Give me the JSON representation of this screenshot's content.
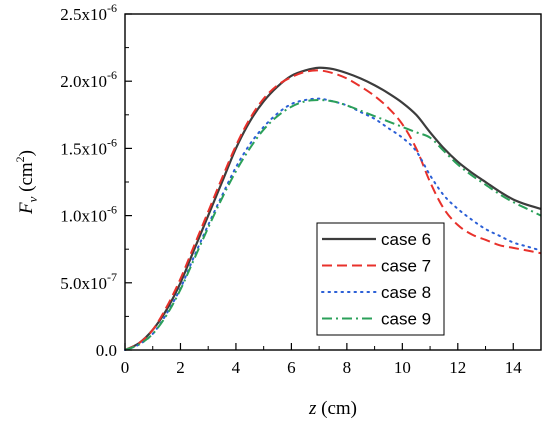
{
  "chart_data": {
    "type": "line",
    "xlabel_var": "z",
    "xlabel_unit": " (cm)",
    "ylabel_var": "F",
    "ylabel_sub": "v",
    "ylabel_unit_pre": " (cm",
    "ylabel_unit_sup": "2",
    "ylabel_unit_post": ")",
    "xlim": [
      0,
      15
    ],
    "ylim": [
      0,
      2.5e-06
    ],
    "x_ticks": [
      0,
      2,
      4,
      6,
      8,
      10,
      12,
      14
    ],
    "x_tick_labels": [
      "0",
      "2",
      "4",
      "6",
      "8",
      "10",
      "12",
      "14"
    ],
    "y_ticks": [
      {
        "value": 0,
        "mantissa": "0.0",
        "exp": ""
      },
      {
        "value": 5e-07,
        "mantissa": "5.0x10",
        "exp": "-7"
      },
      {
        "value": 1e-06,
        "mantissa": "1.0x10",
        "exp": "-6"
      },
      {
        "value": 1.5e-06,
        "mantissa": "1.5x10",
        "exp": "-6"
      },
      {
        "value": 2e-06,
        "mantissa": "2.0x10",
        "exp": "-6"
      },
      {
        "value": 2.5e-06,
        "mantissa": "2.5x10",
        "exp": "-6"
      }
    ],
    "grid": false,
    "legend_position": "lower-right",
    "series": [
      {
        "name": "case 6",
        "color": "#3c3c3c",
        "dash": "solid",
        "x": [
          0,
          0.5,
          1,
          1.5,
          2,
          2.5,
          3,
          3.5,
          4,
          4.5,
          5,
          5.5,
          6,
          6.5,
          7,
          7.5,
          8,
          8.5,
          9,
          9.5,
          10,
          10.5,
          11,
          11.5,
          12,
          12.5,
          13,
          13.5,
          14,
          14.5,
          15
        ],
        "values": [
          0,
          5e-08,
          1.5e-07,
          3e-07,
          5e-07,
          7.5e-07,
          1e-06,
          1.25e-06,
          1.5e-06,
          1.7e-06,
          1.85e-06,
          1.96e-06,
          2.04e-06,
          2.08e-06,
          2.1e-06,
          2.09e-06,
          2.06e-06,
          2.02e-06,
          1.97e-06,
          1.91e-06,
          1.84e-06,
          1.75e-06,
          1.62e-06,
          1.5e-06,
          1.4e-06,
          1.32e-06,
          1.25e-06,
          1.18e-06,
          1.12e-06,
          1.08e-06,
          1.05e-06
        ]
      },
      {
        "name": "case 7",
        "color": "#e8312b",
        "dash": "dashed",
        "x": [
          0,
          0.5,
          1,
          1.5,
          2,
          2.5,
          3,
          3.5,
          4,
          4.5,
          5,
          5.5,
          6,
          6.5,
          7,
          7.5,
          8,
          8.5,
          9,
          9.5,
          10,
          10.5,
          11,
          11.5,
          12,
          12.5,
          13,
          13.5,
          14,
          14.5,
          15
        ],
        "values": [
          0,
          5e-08,
          1.5e-07,
          3.2e-07,
          5.3e-07,
          7.8e-07,
          1.03e-06,
          1.28e-06,
          1.52e-06,
          1.72e-06,
          1.87e-06,
          1.97e-06,
          2.03e-06,
          2.07e-06,
          2.08e-06,
          2.06e-06,
          2.02e-06,
          1.96e-06,
          1.89e-06,
          1.8e-06,
          1.68e-06,
          1.5e-06,
          1.25e-06,
          1.05e-06,
          9.3e-07,
          8.6e-07,
          8.2e-07,
          7.8e-07,
          7.6e-07,
          7.4e-07,
          7.2e-07
        ]
      },
      {
        "name": "case 8",
        "color": "#2b5fd6",
        "dash": "dotted",
        "x": [
          0,
          0.5,
          1,
          1.5,
          2,
          2.5,
          3,
          3.5,
          4,
          4.5,
          5,
          5.5,
          6,
          6.5,
          7,
          7.5,
          8,
          8.5,
          9,
          9.5,
          10,
          10.5,
          11,
          11.5,
          12,
          12.5,
          13,
          13.5,
          14,
          14.5,
          15
        ],
        "values": [
          0,
          4e-08,
          1.2e-07,
          2.7e-07,
          4.6e-07,
          7e-07,
          9.3e-07,
          1.15e-06,
          1.36e-06,
          1.53e-06,
          1.66e-06,
          1.76e-06,
          1.83e-06,
          1.86e-06,
          1.87e-06,
          1.85e-06,
          1.82e-06,
          1.77e-06,
          1.72e-06,
          1.65e-06,
          1.58e-06,
          1.48e-06,
          1.3e-06,
          1.15e-06,
          1.05e-06,
          9.7e-07,
          9e-07,
          8.5e-07,
          8e-07,
          7.7e-07,
          7.4e-07
        ]
      },
      {
        "name": "case 9",
        "color": "#2ba05a",
        "dash": "dashdot",
        "x": [
          0,
          0.5,
          1,
          1.5,
          2,
          2.5,
          3,
          3.5,
          4,
          4.5,
          5,
          5.5,
          6,
          6.5,
          7,
          7.5,
          8,
          8.5,
          9,
          9.5,
          10,
          10.5,
          11,
          11.5,
          12,
          12.5,
          13,
          13.5,
          14,
          14.5,
          15
        ],
        "values": [
          0,
          4e-08,
          1.2e-07,
          2.6e-07,
          4.5e-07,
          6.8e-07,
          9.1e-07,
          1.13e-06,
          1.33e-06,
          1.5e-06,
          1.64e-06,
          1.74e-06,
          1.81e-06,
          1.85e-06,
          1.86e-06,
          1.85e-06,
          1.82e-06,
          1.78e-06,
          1.74e-06,
          1.7e-06,
          1.66e-06,
          1.62e-06,
          1.58e-06,
          1.48e-06,
          1.38e-06,
          1.3e-06,
          1.23e-06,
          1.16e-06,
          1.1e-06,
          1.05e-06,
          1e-06
        ]
      }
    ]
  }
}
